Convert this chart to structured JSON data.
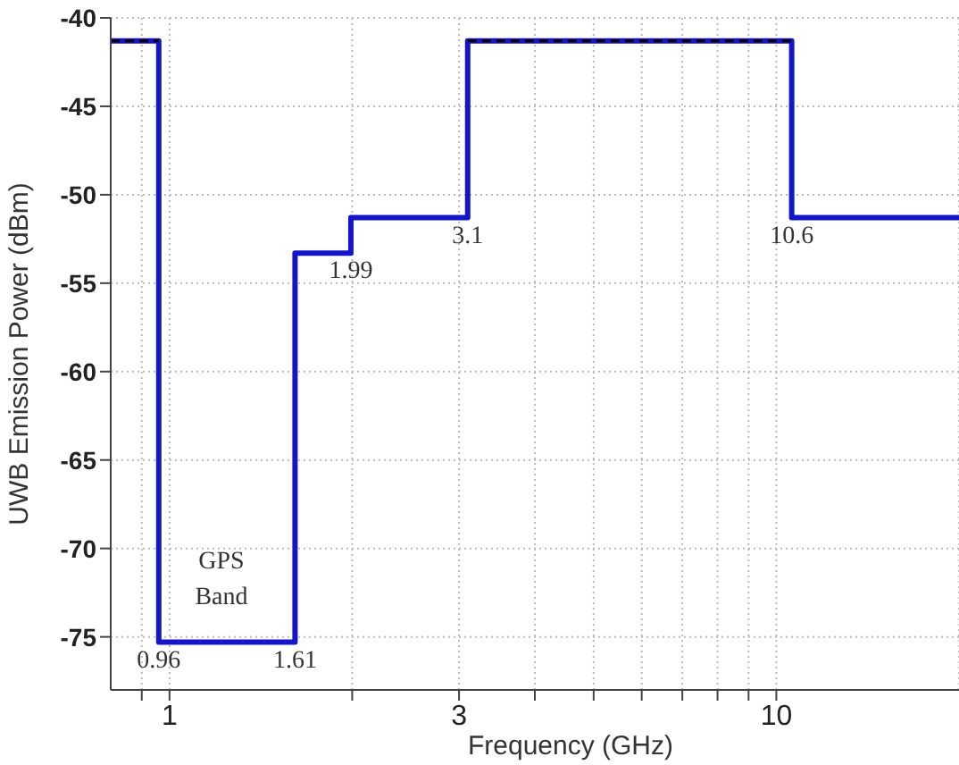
{
  "chart_data": {
    "type": "step",
    "xlabel": "Frequency (GHz)",
    "ylabel": "UWB Emission Power (dBm)",
    "log": "x",
    "xlim": [
      0.8,
      20
    ],
    "ylim": [
      -78,
      -40
    ],
    "xticks": [
      {
        "value": 0.9,
        "label": null
      },
      1,
      {
        "value": 2,
        "label": null
      },
      3,
      {
        "value": 4,
        "label": null
      },
      {
        "value": 5,
        "label": null
      },
      {
        "value": 6,
        "label": null
      },
      {
        "value": 7,
        "label": null
      },
      {
        "value": 8,
        "label": null
      },
      {
        "value": 9,
        "label": null
      },
      10
    ],
    "yticks": [
      -75,
      -70,
      -65,
      -60,
      -55,
      -50,
      -45,
      -40
    ],
    "grid": true,
    "marker": "none",
    "series": [
      {
        "color": "#1414c8",
        "line_style": "solid",
        "x": [
          0.8,
          0.96,
          1.61,
          1.99,
          3.1,
          10.6,
          20
        ],
        "values": [
          -41.3,
          -75.3,
          -53.3,
          -51.3,
          -41.3,
          -51.3,
          -51.3
        ]
      },
      {
        "type": "line",
        "color": "#000000",
        "line_style": "dashed",
        "x": [
          0.8,
          0.96,
          2,
          3.1,
          10.6
        ],
        "values": [
          -41.3,
          -41.3,
          null,
          -41.3,
          -41.3
        ]
      }
    ],
    "annotations": [
      {
        "text": "0.96",
        "x": 0.96,
        "y": -75.3
      },
      {
        "text": "1.61",
        "x": 1.61,
        "y": -75.3
      },
      {
        "text": "1.99",
        "x": 1.99,
        "y": -53.3
      },
      {
        "text": "3.1",
        "x": 3.1,
        "y": -51.3
      },
      {
        "text": "10.6",
        "x": 10.6,
        "y": -51.3
      },
      "GPS Band"
    ]
  }
}
